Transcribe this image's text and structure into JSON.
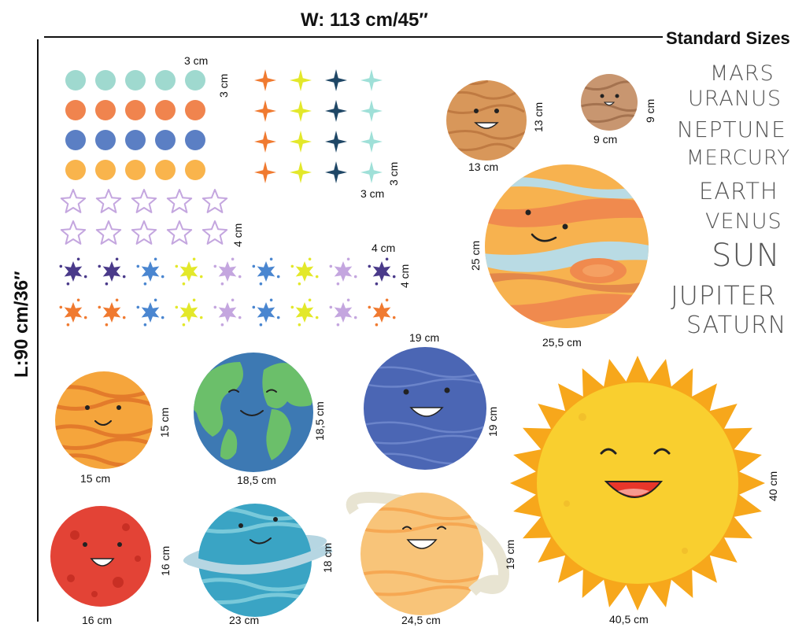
{
  "header": {
    "width_label": "W: 113 cm/45″",
    "height_label": "L:90 cm/36″",
    "standard_sizes_label": "Standard Sizes"
  },
  "names": [
    "MARS",
    "URANUS",
    "NEPTUNE",
    "MERCURY",
    "EARTH",
    "VENUS",
    "SUN",
    "JUPITER",
    "SATURN"
  ],
  "dims": {
    "dots_w": "3 cm",
    "dots_h": "3 cm",
    "sparkle_w": "3 cm",
    "sparkle_h": "3 cm",
    "stars_h": "4 cm",
    "splat_w": "4 cm",
    "splat_h": "4 cm",
    "mercury_w": "13 cm",
    "mercury_h": "13 cm",
    "mars_small_w": "9 cm",
    "mars_small_h": "9 cm",
    "jupiter_w": "25,5 cm",
    "jupiter_h": "25 cm",
    "venus_w": "15 cm",
    "venus_h": "15 cm",
    "earth_w": "18,5 cm",
    "earth_h": "18,5 cm",
    "neptune_w": "19 cm",
    "neptune_h": "19 cm",
    "sun_w": "40,5 cm",
    "sun_h": "40 cm",
    "mars_w": "16 cm",
    "mars_h": "16 cm",
    "uranus_w": "23 cm",
    "uranus_h": "18 cm",
    "saturn_w": "24,5 cm",
    "saturn_h": "19 cm"
  },
  "colors": {
    "dot_rows": [
      "#9fd9cf",
      "#f0844e",
      "#5b7fc4",
      "#f9b44c"
    ],
    "sparkles": [
      "#f07a30",
      "#e3e82a",
      "#1f4766",
      "#9fe0d8"
    ],
    "star_outline": "#c4a6df",
    "splats_row1": [
      "#4a3a8a",
      "#4a3a8a",
      "#4a86d0",
      "#e3e82a",
      "#c4a6df",
      "#4a86d0",
      "#e3e82a",
      "#c4a6df",
      "#4a3a8a"
    ],
    "splats_row2": [
      "#f07a30",
      "#f07a30",
      "#4a86d0",
      "#e3e82a",
      "#c4a6df",
      "#4a86d0",
      "#e3e82a",
      "#c4a6df",
      "#f07a30"
    ]
  }
}
